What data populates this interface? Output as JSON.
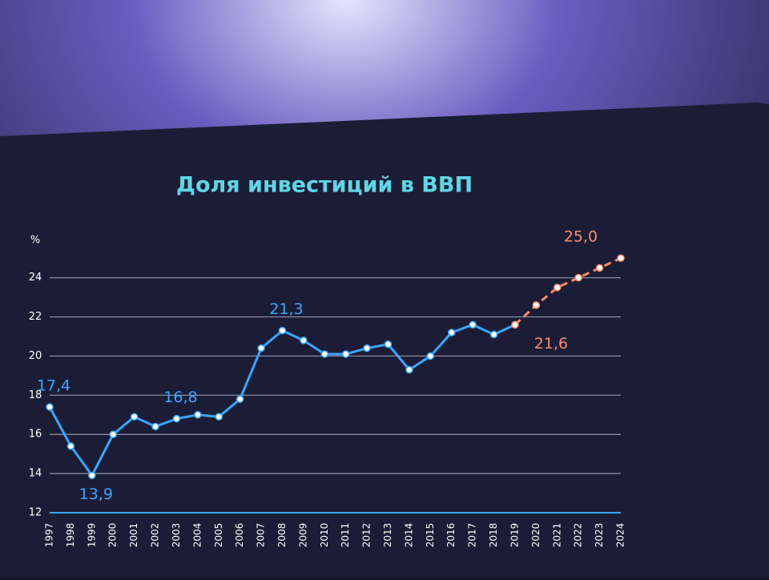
{
  "chart_data": {
    "type": "line",
    "title": "Доля инвестиций в ВВП",
    "y_label": "%",
    "categories": [
      "1997",
      "1998",
      "1999",
      "2000",
      "2001",
      "2002",
      "2003",
      "2004",
      "2005",
      "2006",
      "2007",
      "2008",
      "2009",
      "2010",
      "2011",
      "2012",
      "2013",
      "2014",
      "2015",
      "2016",
      "2017",
      "2018",
      "2019",
      "2020",
      "2021",
      "2022",
      "2023",
      "2024"
    ],
    "series": [
      {
        "color": "#3aa6ff",
        "dashed": false,
        "values": [
          17.4,
          15.4,
          13.9,
          16.0,
          16.9,
          16.4,
          16.8,
          17.0,
          16.9,
          17.8,
          20.4,
          21.3,
          20.8,
          20.1,
          20.1,
          20.4,
          20.6,
          19.3,
          20.0,
          21.2,
          21.6,
          21.1,
          21.6,
          null,
          null,
          null,
          null,
          null
        ],
        "value_labels": [
          "17,4",
          null,
          "13,9",
          null,
          null,
          null,
          "16,8",
          null,
          null,
          null,
          null,
          "21,3",
          null,
          null,
          null,
          null,
          null,
          null,
          null,
          null,
          null,
          null,
          null,
          null,
          null,
          null,
          null,
          null
        ]
      },
      {
        "color": "#ff8a6a",
        "dashed": true,
        "values": [
          null,
          null,
          null,
          null,
          null,
          null,
          null,
          null,
          null,
          null,
          null,
          null,
          null,
          null,
          null,
          null,
          null,
          null,
          null,
          null,
          null,
          null,
          21.6,
          22.6,
          23.5,
          24.0,
          24.5,
          25.0
        ],
        "value_labels": [
          null,
          null,
          null,
          null,
          null,
          null,
          null,
          null,
          null,
          null,
          null,
          null,
          null,
          null,
          null,
          null,
          null,
          null,
          null,
          null,
          null,
          null,
          "21,6",
          null,
          null,
          null,
          null,
          "25,0"
        ]
      }
    ],
    "ylim": [
      12,
      25.5
    ],
    "yticks": [
      12,
      14,
      16,
      18,
      20,
      22,
      24
    ],
    "grid": true
  }
}
